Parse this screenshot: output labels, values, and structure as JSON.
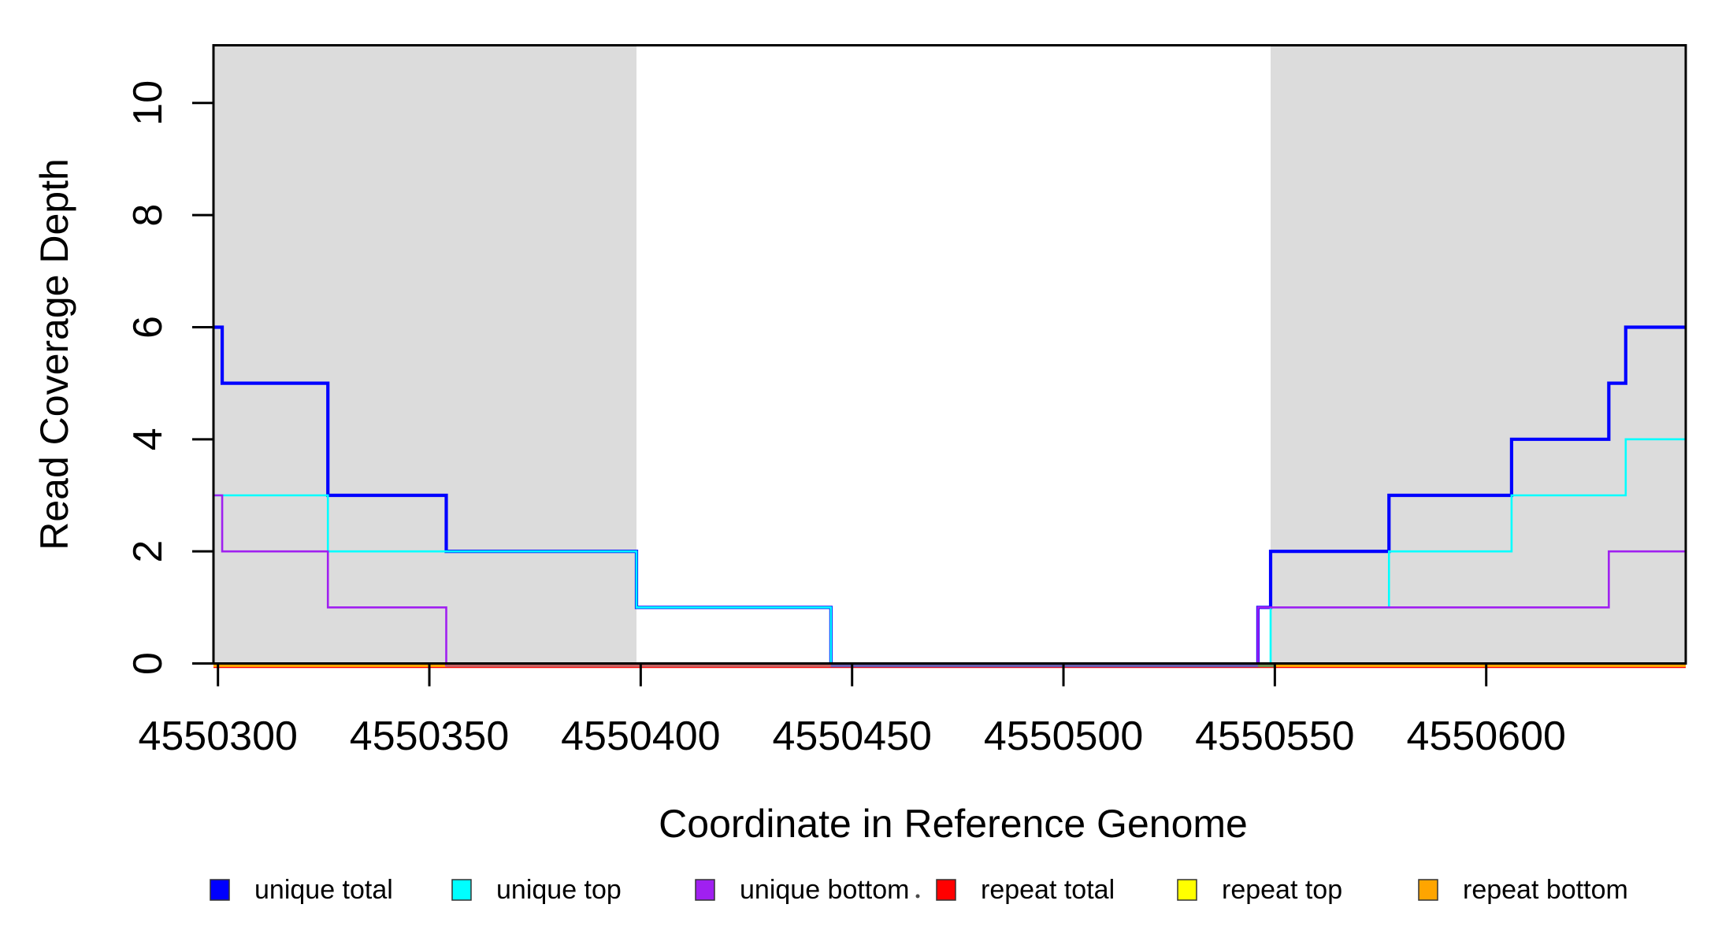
{
  "figure": {
    "x_axis_label": "Coordinate in Reference Genome",
    "y_axis_label": "Read Coverage Depth"
  },
  "legend": {
    "items": [
      {
        "label": "unique total",
        "color": "#0000FF"
      },
      {
        "label": "unique top",
        "color": "#00FFFF"
      },
      {
        "label": "unique bottom",
        "color": "#A020F0"
      },
      {
        "label": "repeat total",
        "color": "#FF0000"
      },
      {
        "label": "repeat top",
        "color": "#FFFF00"
      },
      {
        "label": "repeat bottom",
        "color": "#FFA500"
      }
    ],
    "has_stray_dot": true
  },
  "chart_data": {
    "type": "line",
    "subtype": "step",
    "title": "",
    "xlabel": "Coordinate in Reference Genome",
    "ylabel": "Read Coverage Depth",
    "xlim": [
      4550299,
      4550647
    ],
    "ylim": [
      0,
      11
    ],
    "grid": false,
    "x_ticks": [
      4550300,
      4550350,
      4550400,
      4550450,
      4550500,
      4550550,
      4550600
    ],
    "x_tick_labels": [
      "4550300",
      "4550350",
      "4550400",
      "4550450",
      "4550500",
      "4550550",
      "4550600"
    ],
    "y_ticks": [
      0,
      2,
      4,
      6,
      8,
      10
    ],
    "y_tick_labels": [
      "0",
      "2",
      "4",
      "6",
      "8",
      "10"
    ],
    "shaded_regions": [
      {
        "from": 4550299,
        "to": 4550399,
        "color": "#DCDCDC"
      },
      {
        "from": 4550549,
        "to": 4550647,
        "color": "#DCDCDC"
      }
    ],
    "series": [
      {
        "name": "unique total",
        "color": "#0000FF",
        "line_width": 4.2,
        "steps": [
          [
            4550299,
            6
          ],
          [
            4550301,
            5
          ],
          [
            4550326,
            3
          ],
          [
            4550354,
            2
          ],
          [
            4550399,
            1
          ],
          [
            4550445,
            0
          ],
          [
            4550546,
            1
          ],
          [
            4550549,
            2
          ],
          [
            4550577,
            3
          ],
          [
            4550606,
            4
          ],
          [
            4550629,
            5
          ],
          [
            4550633,
            6
          ]
        ],
        "end": 4550647
      },
      {
        "name": "unique top",
        "color": "#00FFFF",
        "line_width": 2.6,
        "steps": [
          [
            4550299,
            3
          ],
          [
            4550326,
            2
          ],
          [
            4550399,
            1
          ],
          [
            4550445,
            0
          ],
          [
            4550549,
            1
          ],
          [
            4550577,
            2
          ],
          [
            4550606,
            3
          ],
          [
            4550633,
            4
          ]
        ],
        "end": 4550647
      },
      {
        "name": "unique bottom",
        "color": "#A020F0",
        "line_width": 2.6,
        "steps": [
          [
            4550299,
            3
          ],
          [
            4550301,
            2
          ],
          [
            4550326,
            1
          ],
          [
            4550354,
            0
          ],
          [
            4550546,
            1
          ],
          [
            4550629,
            2
          ]
        ],
        "end": 4550647
      },
      {
        "name": "repeat total",
        "color": "#FF0000",
        "line_width": 2.6,
        "steps": [
          [
            4550299,
            0
          ]
        ],
        "end": 4550647
      },
      {
        "name": "repeat top",
        "color": "#FFFF00",
        "line_width": 2.6,
        "steps": [
          [
            4550299,
            0
          ]
        ],
        "end": 4550647
      },
      {
        "name": "repeat bottom",
        "color": "#FFA500",
        "line_width": 4,
        "steps": [
          [
            4550299,
            0
          ]
        ],
        "end": 4550647
      }
    ],
    "baseline_overlay_segments": [
      {
        "from": 4550354,
        "to": 4550445,
        "color": "#C46262"
      },
      {
        "from": 4550445,
        "to": 4550546,
        "color": "#6A60B0"
      },
      {
        "from": 4550546,
        "to": 4550550,
        "color": "#6E8E50"
      }
    ]
  }
}
